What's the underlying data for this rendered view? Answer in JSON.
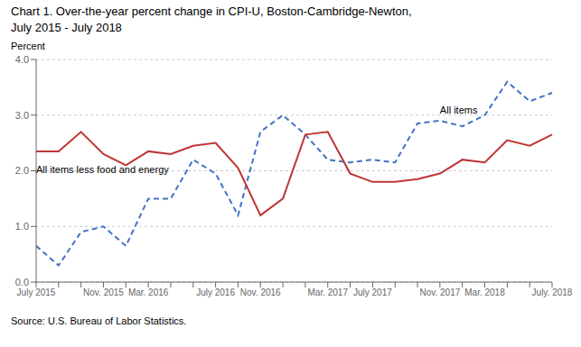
{
  "chart_data": {
    "type": "line",
    "title": "Chart 1.  Over-the-year percent change in CPI-U, Boston-Cambridge-Newton,",
    "subtitle": "July 2015 - July 2018",
    "y_label": "Percent",
    "source": "Source: U.S. Bureau of Labor Statistics.",
    "categories": [
      "July 2015",
      null,
      null,
      "Nov. 2015",
      null,
      "Mar. 2016",
      null,
      null,
      "July 2016",
      null,
      "Nov. 2016",
      null,
      null,
      "Mar. 2017",
      null,
      "July 2017",
      null,
      null,
      "Nov. 2017",
      null,
      "Mar. 2018",
      null,
      null,
      "July. 2018"
    ],
    "series": [
      {
        "name": "All items",
        "color": "#4472C4",
        "line_style": "dashed",
        "values": [
          0.65,
          0.3,
          0.9,
          1.0,
          0.65,
          1.5,
          1.5,
          2.2,
          1.95,
          1.2,
          2.7,
          3.0,
          2.65,
          2.2,
          2.15,
          2.2,
          2.15,
          2.85,
          2.9,
          2.8,
          3.0,
          3.6,
          3.25,
          3.4
        ]
      },
      {
        "name": "All items less food and energy",
        "color": "#BE3535",
        "line_style": "solid",
        "values": [
          2.35,
          2.35,
          2.7,
          2.3,
          2.1,
          2.35,
          2.3,
          2.45,
          2.5,
          2.05,
          1.2,
          1.5,
          2.65,
          2.7,
          1.95,
          1.8,
          1.8,
          1.85,
          1.95,
          2.2,
          2.15,
          2.55,
          2.45,
          2.65
        ]
      }
    ],
    "ylim": [
      0.0,
      4.0
    ],
    "yticks": [
      {
        "value": 0,
        "label": "0.0"
      },
      {
        "value": 1,
        "label": "1.0"
      },
      {
        "value": 2,
        "label": "2.0"
      },
      {
        "value": 3,
        "label": "3.0"
      },
      {
        "value": 4,
        "label": "4.0"
      }
    ],
    "grid": true
  }
}
